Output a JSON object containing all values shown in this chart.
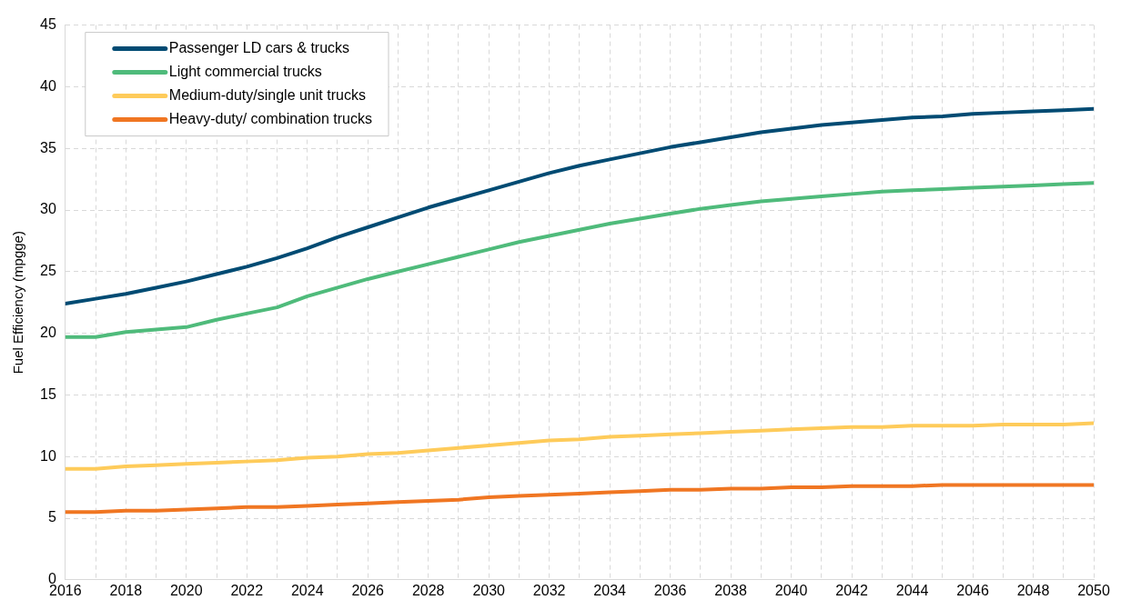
{
  "chart_data": {
    "type": "line",
    "ylabel": "Fuel Efficiency (mpgge)",
    "x": [
      2016,
      2017,
      2018,
      2019,
      2020,
      2021,
      2022,
      2023,
      2024,
      2025,
      2026,
      2027,
      2028,
      2029,
      2030,
      2031,
      2032,
      2033,
      2034,
      2035,
      2036,
      2037,
      2038,
      2039,
      2040,
      2041,
      2042,
      2043,
      2044,
      2045,
      2046,
      2047,
      2048,
      2049,
      2050
    ],
    "series": [
      {
        "name": "Passenger LD cars & trucks",
        "color": "#004b73",
        "values": [
          22.4,
          22.8,
          23.2,
          23.7,
          24.2,
          24.8,
          25.4,
          26.1,
          26.9,
          27.8,
          28.6,
          29.4,
          30.2,
          30.9,
          31.6,
          32.3,
          33.0,
          33.6,
          34.1,
          34.6,
          35.1,
          35.5,
          35.9,
          36.3,
          36.6,
          36.9,
          37.1,
          37.3,
          37.5,
          37.6,
          37.8,
          37.9,
          38.0,
          38.1,
          38.2
        ]
      },
      {
        "name": "Light commercial trucks",
        "color": "#4fbb7b",
        "values": [
          19.7,
          19.7,
          20.1,
          20.3,
          20.5,
          21.1,
          21.6,
          22.1,
          23.0,
          23.7,
          24.4,
          25.0,
          25.6,
          26.2,
          26.8,
          27.4,
          27.9,
          28.4,
          28.9,
          29.3,
          29.7,
          30.1,
          30.4,
          30.7,
          30.9,
          31.1,
          31.3,
          31.5,
          31.6,
          31.7,
          31.8,
          31.9,
          32.0,
          32.1,
          32.2
        ]
      },
      {
        "name": "Medium-duty/single unit trucks",
        "color": "#fecb5a",
        "values": [
          9.0,
          9.0,
          9.2,
          9.3,
          9.4,
          9.5,
          9.6,
          9.7,
          9.9,
          10.0,
          10.2,
          10.3,
          10.5,
          10.7,
          10.9,
          11.1,
          11.3,
          11.4,
          11.6,
          11.7,
          11.8,
          11.9,
          12.0,
          12.1,
          12.2,
          12.3,
          12.4,
          12.4,
          12.5,
          12.5,
          12.5,
          12.6,
          12.6,
          12.6,
          12.7
        ]
      },
      {
        "name": "Heavy-duty/ combination trucks",
        "color": "#f07622",
        "values": [
          5.5,
          5.5,
          5.6,
          5.6,
          5.7,
          5.8,
          5.9,
          5.9,
          6.0,
          6.1,
          6.2,
          6.3,
          6.4,
          6.5,
          6.7,
          6.8,
          6.9,
          7.0,
          7.1,
          7.2,
          7.3,
          7.3,
          7.4,
          7.4,
          7.5,
          7.5,
          7.6,
          7.6,
          7.6,
          7.7,
          7.7,
          7.7,
          7.7,
          7.7,
          7.7
        ]
      }
    ],
    "xlim": [
      2016,
      2050
    ],
    "xticks": [
      2016,
      {
        "value": 2017,
        "label": null
      },
      2018,
      {
        "value": 2019,
        "label": null
      },
      2020,
      {
        "value": 2021,
        "label": null
      },
      2022,
      {
        "value": 2023,
        "label": null
      },
      2024,
      {
        "value": 2025,
        "label": null
      },
      2026,
      {
        "value": 2027,
        "label": null
      },
      2028,
      {
        "value": 2029,
        "label": null
      },
      2030,
      {
        "value": 2031,
        "label": null
      },
      2032,
      {
        "value": 2033,
        "label": null
      },
      2034,
      {
        "value": 2035,
        "label": null
      },
      2036,
      {
        "value": 2037,
        "label": null
      },
      2038,
      {
        "value": 2039,
        "label": null
      },
      2040,
      {
        "value": 2041,
        "label": null
      },
      2042,
      {
        "value": 2043,
        "label": null
      },
      2044,
      {
        "value": 2045,
        "label": null
      },
      2046,
      {
        "value": 2047,
        "label": null
      },
      2048,
      {
        "value": 2049,
        "label": null
      },
      2050
    ],
    "ylim": [
      0,
      45
    ],
    "yticks": [
      0,
      5,
      10,
      15,
      20,
      25,
      30,
      35,
      40,
      45
    ],
    "grid": true,
    "legend": "top left",
    "marker": "none",
    "line_style": "solid"
  }
}
